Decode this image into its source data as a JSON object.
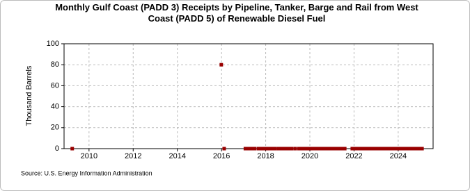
{
  "chart_data": {
    "type": "scatter",
    "title": "Monthly Gulf Coast (PADD 3) Receipts by Pipeline, Tanker, Barge and Rail from West Coast (PADD 5) of Renewable Diesel Fuel",
    "ylabel": "Thousand Barrels",
    "source": "Source: U.S. Energy Information Administration",
    "color": "#990000",
    "grid": true,
    "xlim": [
      2008.87,
      2025.58
    ],
    "xticks": [
      2010,
      2012,
      2014,
      2016,
      2018,
      2020,
      2022,
      2024
    ],
    "ylim": [
      0,
      100
    ],
    "yticks": [
      0,
      20,
      40,
      60,
      80,
      100
    ],
    "x": [
      2009.24,
      2015.99,
      2016.12,
      2017.08,
      2017.17,
      2017.25,
      2017.33,
      2017.42,
      2017.5,
      2017.67,
      2017.75,
      2017.83,
      2017.92,
      2018.0,
      2018.08,
      2018.17,
      2018.25,
      2018.33,
      2018.42,
      2018.58,
      2018.67,
      2018.75,
      2018.83,
      2018.92,
      2019.0,
      2019.08,
      2019.17,
      2019.33,
      2019.5,
      2019.58,
      2019.67,
      2019.75,
      2019.83,
      2019.92,
      2020.0,
      2020.08,
      2020.17,
      2020.25,
      2020.33,
      2020.42,
      2020.5,
      2020.58,
      2020.67,
      2020.75,
      2020.83,
      2020.92,
      2021.0,
      2021.08,
      2021.17,
      2021.25,
      2021.33,
      2021.42,
      2021.5,
      2021.58,
      2021.92,
      2022.0,
      2022.08,
      2022.17,
      2022.25,
      2022.33,
      2022.42,
      2022.5,
      2022.58,
      2022.67,
      2022.75,
      2022.83,
      2022.92,
      2023.0,
      2023.08,
      2023.17,
      2023.25,
      2023.33,
      2023.42,
      2023.5,
      2023.58,
      2023.67,
      2023.75,
      2023.83,
      2023.92,
      2024.0,
      2024.08,
      2024.17,
      2024.25,
      2024.33,
      2024.42,
      2024.5,
      2024.58,
      2024.67,
      2024.75,
      2024.83,
      2024.92,
      2025.0,
      2025.08
    ],
    "values": [
      0,
      80,
      0,
      0,
      0,
      0,
      0,
      0,
      0,
      0,
      0,
      0,
      0,
      0,
      0,
      0,
      0,
      0,
      0,
      0,
      0,
      0,
      0,
      0,
      0,
      0,
      0,
      0,
      0,
      0,
      0,
      0,
      0,
      0,
      0,
      0,
      0,
      0,
      0,
      0,
      0,
      0,
      0,
      0,
      0,
      0,
      0,
      0,
      0,
      0,
      0,
      0,
      0,
      0,
      0,
      0,
      0,
      0,
      0,
      0,
      0,
      0,
      0,
      0,
      0,
      0,
      0,
      0,
      0,
      0,
      0,
      0,
      0,
      0,
      0,
      0,
      0,
      0,
      0,
      0,
      0,
      0,
      0,
      0,
      0,
      0,
      0,
      0,
      0,
      0,
      0,
      0,
      0
    ]
  }
}
